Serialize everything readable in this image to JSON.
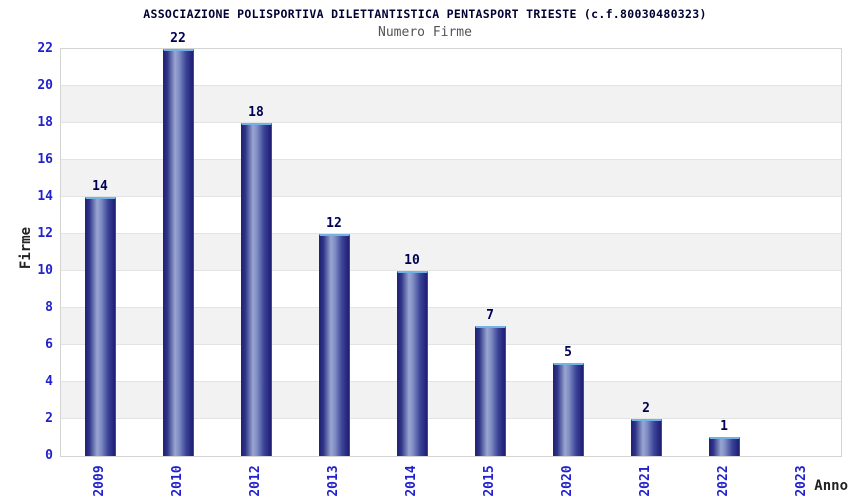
{
  "chart_data": {
    "type": "bar",
    "title": "ASSOCIAZIONE POLISPORTIVA DILETTANTISTICA PENTASPORT TRIESTE (c.f.80030480323)",
    "subtitle": "Numero Firme",
    "xlabel": "Anno",
    "ylabel": "Firme",
    "categories": [
      "2009",
      "2010",
      "2012",
      "2013",
      "2014",
      "2015",
      "2020",
      "2021",
      "2022",
      "2023"
    ],
    "values": [
      14,
      22,
      18,
      12,
      10,
      7,
      5,
      2,
      1,
      0
    ],
    "ylim": [
      0,
      22
    ],
    "ytick_step": 2,
    "grid": true,
    "legend_position": "none",
    "bar_value_labels_shown": true,
    "colors": {
      "title": "#000033",
      "subtitle": "#555555",
      "tick_label": "#2222cc",
      "axis_title": "#222222",
      "value_label": "#000055",
      "bar_edge_dark": "#222279",
      "bar_mid_dark": "#303788",
      "bar_center_light": "#9aa5d1",
      "bar_right_dark": "#1d1d75",
      "bar_border_blue": "#3346d0",
      "bar_top_highlight": "#72b2e6",
      "band_alt": "#f2f2f2",
      "band_main": "#ffffff",
      "gridline": "#e3e3e3",
      "plot_border": "#d4d4d4"
    }
  }
}
